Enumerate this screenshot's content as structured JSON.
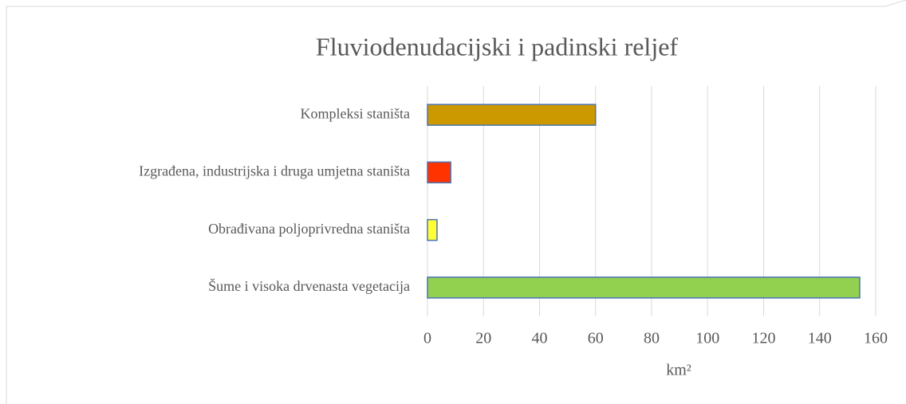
{
  "chart_data": {
    "type": "bar",
    "orientation": "horizontal",
    "title": "Fluviodenudacijski i padinski reljef",
    "x_label": "km²",
    "categories": [
      "Kompleksi staništa",
      "Izgrađena, industrijska i druga umjetna staništa",
      "Obrađivana poljoprivredna staništa",
      "Šume i visoka drvenasta vegetacija"
    ],
    "values": [
      60,
      8.3,
      3.4,
      154.3
    ],
    "colors": [
      "#cc9900",
      "#ff3300",
      "#ffff33",
      "#92d050"
    ],
    "edge_color": "#4a74b4",
    "xlim": [
      0,
      160
    ],
    "xticks": [
      0,
      20,
      40,
      60,
      80,
      100,
      120,
      140,
      160
    ],
    "grid": true
  }
}
